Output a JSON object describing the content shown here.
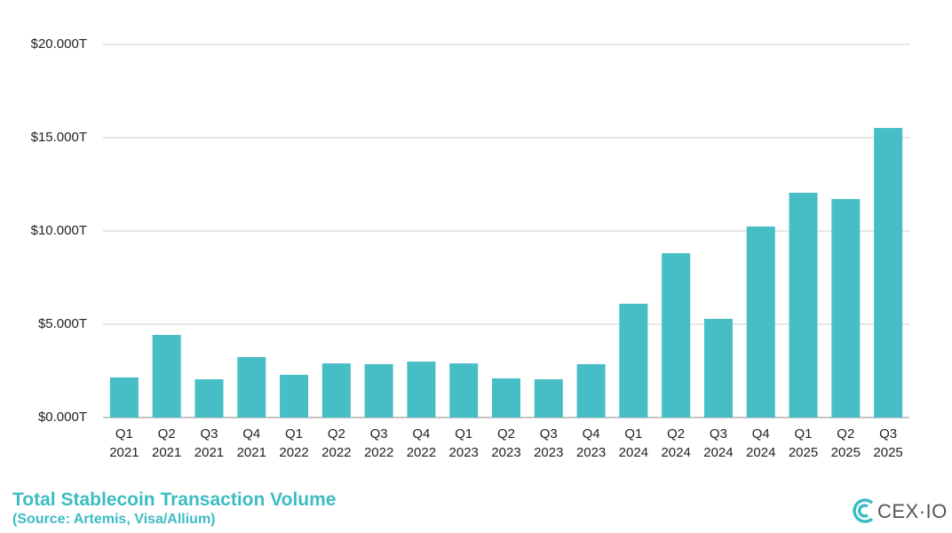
{
  "chart_data": {
    "type": "bar",
    "title": "Total Stablecoin Transaction Volume",
    "subtitle": "(Source: Artemis, Visa/Allium)",
    "logo": "CEX·IO",
    "categories": [
      "Q1\n2021",
      "Q2\n2021",
      "Q3\n2021",
      "Q4\n2021",
      "Q1\n2022",
      "Q2\n2022",
      "Q3\n2022",
      "Q4\n2022",
      "Q1\n2023",
      "Q2\n2023",
      "Q3\n2023",
      "Q4\n2023",
      "Q1\n2024",
      "Q2\n2024",
      "Q3\n2024",
      "Q4\n2024",
      "Q1\n2025",
      "Q2\n2025",
      "Q3\n2025"
    ],
    "values": [
      2.15,
      4.43,
      2.05,
      3.24,
      2.29,
      2.9,
      2.86,
      3.0,
      2.9,
      2.1,
      2.05,
      2.86,
      6.1,
      8.81,
      5.29,
      10.24,
      12.05,
      11.71,
      15.52
    ],
    "color": "#47bec6",
    "ylim": [
      0,
      20
    ],
    "yticks": [
      {
        "value": 0,
        "label": "$0.000T"
      },
      {
        "value": 5,
        "label": "$5.000T"
      },
      {
        "value": 10,
        "label": "$10.000T"
      },
      {
        "value": 15,
        "label": "$15.000T"
      },
      {
        "value": 20,
        "label": "$20.000T"
      }
    ],
    "grid": true
  }
}
